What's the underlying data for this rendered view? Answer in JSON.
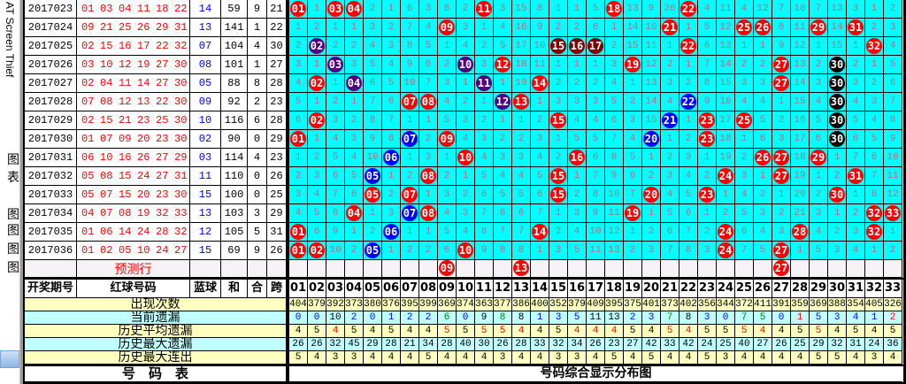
{
  "overlay_label": "AT Screen Thief",
  "sidebar": {
    "items": [
      "图表",
      "图",
      "图",
      "图",
      "图"
    ]
  },
  "colors": {
    "red_ball": "#ff0000",
    "purple_ball": "#52007f",
    "maroon_ball": "#7f0000",
    "black_ball": "#000000",
    "blue_ball": "#0000ff",
    "grid_bg": "#00ffff"
  },
  "rows": [
    {
      "period": "2017023",
      "reds": [
        "01",
        "03",
        "04",
        "11",
        "18",
        "22"
      ],
      "blue": "14",
      "sum": "59",
      "he": "9",
      "kua": "21",
      "special": {},
      "cells": [
        "01",
        "1",
        "03",
        "04",
        "2",
        "1",
        "6",
        "3",
        "8",
        "2",
        "11",
        "3",
        "15",
        "8",
        "1",
        "1",
        "5",
        "18",
        "13",
        "9",
        "26",
        "22",
        "4",
        "11",
        "4",
        "12",
        "7",
        "10",
        "7",
        "13",
        "3",
        "1",
        "2"
      ]
    },
    {
      "period": "2017024",
      "reds": [
        "09",
        "21",
        "25",
        "26",
        "29",
        "31"
      ],
      "blue": "13",
      "sum": "141",
      "he": "1",
      "kua": "22",
      "special": {},
      "cells": [
        "1",
        "2",
        "1",
        "1",
        "3",
        "2",
        "7",
        "4",
        "09",
        "3",
        "1",
        "4",
        "16",
        "9",
        "2",
        "2",
        "6",
        "1",
        "14",
        "10",
        "21",
        "1",
        "5",
        "12",
        "25",
        "26",
        "8",
        "11",
        "29",
        "14",
        "31",
        "2",
        "3"
      ]
    },
    {
      "period": "2017025",
      "reds": [
        "02",
        "15",
        "16",
        "17",
        "22",
        "32"
      ],
      "blue": "07",
      "sum": "104",
      "he": "4",
      "kua": "30",
      "special": {
        "02": "purple",
        "15": "maroon",
        "16": "maroon",
        "17": "maroon"
      },
      "cells": [
        "2",
        "02",
        "2",
        "2",
        "4",
        "3",
        "8",
        "5",
        "1",
        "4",
        "2",
        "5",
        "17",
        "10",
        "15",
        "16",
        "17",
        "2",
        "15",
        "11",
        "1",
        "22",
        "6",
        "13",
        "1",
        "1",
        "9",
        "12",
        "1",
        "15",
        "1",
        "32",
        "4"
      ]
    },
    {
      "period": "2017026",
      "reds": [
        "03",
        "10",
        "12",
        "19",
        "27",
        "30"
      ],
      "blue": "08",
      "sum": "101",
      "he": "1",
      "kua": "27",
      "special": {
        "03": "purple",
        "10": "purple",
        "30": "black"
      },
      "cells": [
        "3",
        "1",
        "03",
        "3",
        "5",
        "4",
        "9",
        "6",
        "2",
        "10",
        "3",
        "12",
        "18",
        "11",
        "1",
        "1",
        "1",
        "3",
        "19",
        "12",
        "2",
        "1",
        "7",
        "14",
        "2",
        "2",
        "27",
        "13",
        "2",
        "30",
        "2",
        "1",
        "5"
      ]
    },
    {
      "period": "2017027",
      "reds": [
        "02",
        "04",
        "11",
        "14",
        "27",
        "30"
      ],
      "blue": "05",
      "sum": "88",
      "he": "8",
      "kua": "28",
      "special": {
        "04": "purple",
        "11": "purple",
        "30": "black"
      },
      "cells": [
        "4",
        "02",
        "1",
        "04",
        "6",
        "5",
        "10",
        "7",
        "3",
        "1",
        "11",
        "1",
        "19",
        "14",
        "2",
        "2",
        "2",
        "4",
        "1",
        "13",
        "3",
        "2",
        "8",
        "15",
        "3",
        "3",
        "27",
        "14",
        "3",
        "30",
        "3",
        "2",
        "6"
      ]
    },
    {
      "period": "2017028",
      "reds": [
        "07",
        "08",
        "12",
        "13",
        "22",
        "30"
      ],
      "blue": "09",
      "sum": "92",
      "he": "2",
      "kua": "23",
      "special": {
        "12": "purple",
        "22": "blue",
        "30": "black"
      },
      "cells": [
        "5",
        "1",
        "2",
        "1",
        "7",
        "6",
        "07",
        "08",
        "4",
        "2",
        "1",
        "12",
        "13",
        "1",
        "3",
        "3",
        "3",
        "5",
        "2",
        "14",
        "4",
        "22",
        "9",
        "16",
        "4",
        "4",
        "1",
        "15",
        "4",
        "30",
        "4",
        "3",
        "7"
      ]
    },
    {
      "period": "2017029",
      "reds": [
        "02",
        "15",
        "21",
        "23",
        "25",
        "30"
      ],
      "blue": "10",
      "sum": "116",
      "he": "6",
      "kua": "28",
      "special": {
        "21": "blue",
        "30": "black"
      },
      "cells": [
        "6",
        "02",
        "3",
        "2",
        "8",
        "7",
        "1",
        "1",
        "5",
        "3",
        "2",
        "1",
        "1",
        "2",
        "15",
        "4",
        "4",
        "6",
        "3",
        "15",
        "21",
        "1",
        "23",
        "17",
        "25",
        "5",
        "2",
        "16",
        "5",
        "30",
        "5",
        "4",
        "8"
      ]
    },
    {
      "period": "2017030",
      "reds": [
        "01",
        "07",
        "09",
        "20",
        "23",
        "30"
      ],
      "blue": "02",
      "sum": "90",
      "he": "0",
      "kua": "29",
      "special": {
        "07": "blue",
        "20": "blue",
        "30": "black"
      },
      "cells": [
        "01",
        "1",
        "4",
        "3",
        "9",
        "8",
        "07",
        "2",
        "09",
        "4",
        "3",
        "2",
        "2",
        "3",
        "1",
        "5",
        "5",
        "7",
        "4",
        "20",
        "1",
        "2",
        "23",
        "18",
        "1",
        "6",
        "3",
        "17",
        "6",
        "30",
        "6",
        "5",
        "9"
      ]
    },
    {
      "period": "2017031",
      "reds": [
        "06",
        "10",
        "16",
        "26",
        "27",
        "29"
      ],
      "blue": "03",
      "sum": "114",
      "he": "4",
      "kua": "23",
      "special": {
        "06": "blue"
      },
      "cells": [
        "1",
        "2",
        "5",
        "4",
        "10",
        "06",
        "1",
        "3",
        "1",
        "10",
        "4",
        "3",
        "3",
        "4",
        "2",
        "16",
        "6",
        "8",
        "5",
        "1",
        "2",
        "3",
        "1",
        "19",
        "2",
        "26",
        "27",
        "18",
        "29",
        "1",
        "7",
        "6",
        "10"
      ]
    },
    {
      "period": "2017032",
      "reds": [
        "05",
        "08",
        "15",
        "24",
        "27",
        "31"
      ],
      "blue": "11",
      "sum": "110",
      "he": "0",
      "kua": "26",
      "special": {
        "05": "blue"
      },
      "cells": [
        "2",
        "3",
        "6",
        "5",
        "05",
        "1",
        "2",
        "08",
        "2",
        "1",
        "5",
        "4",
        "4",
        "5",
        "15",
        "1",
        "7",
        "9",
        "6",
        "2",
        "3",
        "4",
        "2",
        "24",
        "3",
        "1",
        "27",
        "19",
        "1",
        "2",
        "31",
        "7",
        "11"
      ]
    },
    {
      "period": "2017033",
      "reds": [
        "05",
        "07",
        "15",
        "20",
        "23",
        "30"
      ],
      "blue": "15",
      "sum": "100",
      "he": "0",
      "kua": "25",
      "special": {},
      "cells": [
        "3",
        "4",
        "7",
        "6",
        "05",
        "2",
        "07",
        "1",
        "3",
        "2",
        "6",
        "5",
        "5",
        "6",
        "15",
        "2",
        "8",
        "10",
        "7",
        "20",
        "4",
        "5",
        "23",
        "1",
        "4",
        "2",
        "1",
        "20",
        "2",
        "30",
        "1",
        "8",
        "12"
      ]
    },
    {
      "period": "2017034",
      "reds": [
        "04",
        "07",
        "08",
        "19",
        "32",
        "33"
      ],
      "blue": "13",
      "sum": "103",
      "he": "3",
      "kua": "29",
      "special": {
        "07": "blue"
      },
      "cells": [
        "4",
        "5",
        "8",
        "04",
        "1",
        "3",
        "07",
        "08",
        "4",
        "3",
        "7",
        "6",
        "6",
        "7",
        "1",
        "3",
        "9",
        "11",
        "19",
        "1",
        "5",
        "6",
        "1",
        "2",
        "5",
        "3",
        "2",
        "21",
        "3",
        "1",
        "2",
        "32",
        "33"
      ]
    },
    {
      "period": "2017035",
      "reds": [
        "01",
        "06",
        "14",
        "24",
        "28",
        "32"
      ],
      "blue": "12",
      "sum": "105",
      "he": "5",
      "kua": "31",
      "special": {
        "06": "blue"
      },
      "cells": [
        "01",
        "6",
        "9",
        "1",
        "2",
        "06",
        "1",
        "1",
        "5",
        "4",
        "8",
        "7",
        "7",
        "14",
        "2",
        "4",
        "10",
        "12",
        "1",
        "2",
        "6",
        "7",
        "2",
        "24",
        "6",
        "4",
        "3",
        "28",
        "4",
        "2",
        "3",
        "32",
        "1"
      ]
    },
    {
      "period": "2017036",
      "reds": [
        "01",
        "02",
        "05",
        "10",
        "24",
        "27"
      ],
      "blue": "15",
      "sum": "69",
      "he": "9",
      "kua": "26",
      "special": {
        "05": "blue"
      },
      "cells": [
        "01",
        "02",
        "10",
        "2",
        "05",
        "1",
        "2",
        "2",
        "6",
        "10",
        "9",
        "8",
        "8",
        "1",
        "3",
        "5",
        "11",
        "13",
        "2",
        "3",
        "7",
        "8",
        "3",
        "24",
        "7",
        "5",
        "27",
        "1",
        "5",
        "3",
        "4",
        "1",
        "2"
      ]
    }
  ],
  "prediction": {
    "label": "预测行",
    "balls": [
      "09",
      "13",
      "27"
    ]
  },
  "header": {
    "period": "开奖期号",
    "reds": "红球号码",
    "blue": "蓝球",
    "sum": "和",
    "he": "合",
    "kua": "跨",
    "numbers": [
      "01",
      "02",
      "03",
      "04",
      "05",
      "06",
      "07",
      "08",
      "09",
      "10",
      "11",
      "12",
      "13",
      "14",
      "15",
      "16",
      "17",
      "18",
      "19",
      "20",
      "21",
      "22",
      "23",
      "24",
      "25",
      "26",
      "27",
      "28",
      "29",
      "30",
      "31",
      "32",
      "33"
    ]
  },
  "stats": [
    {
      "label": "出现次数",
      "bg": "y",
      "values": [
        "404",
        "379",
        "392",
        "373",
        "380",
        "376",
        "395",
        "399",
        "369",
        "374",
        "363",
        "377",
        "386",
        "400",
        "352",
        "379",
        "409",
        "395",
        "375",
        "401",
        "373",
        "402",
        "356",
        "344",
        "372",
        "411",
        "391",
        "359",
        "369",
        "388",
        "354",
        "405",
        "326"
      ],
      "colors": "kkkkkkkkkkkkkkkkkkkkkkkkkkkkkkkkk"
    },
    {
      "label": "当前遗漏",
      "bg": "c",
      "values": [
        "0",
        "0",
        "10",
        "2",
        "0",
        "1",
        "2",
        "2",
        "6",
        "0",
        "9",
        "8",
        "8",
        "1",
        "3",
        "5",
        "11",
        "13",
        "2",
        "3",
        "7",
        "8",
        "3",
        "0",
        "7",
        "5",
        "0",
        "1",
        "5",
        "3",
        "4",
        "1",
        "2"
      ],
      "colors": "bbkbbbbbgbkgkbbbkkbbgkbbggbrbbbbr"
    },
    {
      "label": "历史平均遗漏",
      "bg": "y",
      "values": [
        "4",
        "5",
        "4",
        "5",
        "4",
        "5",
        "4",
        "4",
        "5",
        "5",
        "5",
        "5",
        "4",
        "4",
        "5",
        "4",
        "4",
        "4",
        "5",
        "4",
        "5",
        "4",
        "5",
        "5",
        "5",
        "4",
        "4",
        "5",
        "5",
        "4",
        "5",
        "4",
        "5"
      ],
      "colors": "kkrkkkkkrkrrrkkrrrkkrrkkrrkkrkkkk"
    },
    {
      "label": "历史最大遗漏",
      "bg": "c",
      "values": [
        "26",
        "26",
        "32",
        "45",
        "29",
        "28",
        "21",
        "34",
        "28",
        "40",
        "30",
        "26",
        "28",
        "33",
        "32",
        "34",
        "26",
        "23",
        "27",
        "42",
        "33",
        "42",
        "24",
        "25",
        "40",
        "27",
        "26",
        "25",
        "29",
        "32",
        "31",
        "24",
        "36"
      ],
      "colors": "kkkkkkkkkkkkkkkkkkkkkkkkkkkkkkkkk"
    },
    {
      "label": "历史最大连出",
      "bg": "y",
      "values": [
        "5",
        "4",
        "3",
        "3",
        "4",
        "4",
        "4",
        "5",
        "4",
        "4",
        "4",
        "3",
        "4",
        "4",
        "3",
        "3",
        "4",
        "5",
        "4",
        "5",
        "4",
        "4",
        "5",
        "3",
        "4",
        "4",
        "4",
        "4",
        "5",
        "5",
        "4",
        "3",
        "4"
      ],
      "colors": "kkkkkkkkkkkkkkkkkkkkkkkkkkkkkkkkk"
    }
  ],
  "footer": {
    "left": "号　码　表",
    "right": "号码综合显示分布图"
  }
}
